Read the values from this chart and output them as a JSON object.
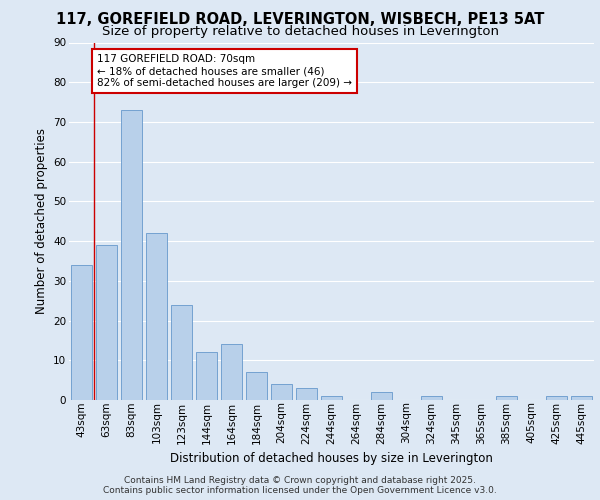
{
  "title_line1": "117, GOREFIELD ROAD, LEVERINGTON, WISBECH, PE13 5AT",
  "title_line2": "Size of property relative to detached houses in Leverington",
  "xlabel": "Distribution of detached houses by size in Leverington",
  "ylabel": "Number of detached properties",
  "categories": [
    "43sqm",
    "63sqm",
    "83sqm",
    "103sqm",
    "123sqm",
    "144sqm",
    "164sqm",
    "184sqm",
    "204sqm",
    "224sqm",
    "244sqm",
    "264sqm",
    "284sqm",
    "304sqm",
    "324sqm",
    "345sqm",
    "365sqm",
    "385sqm",
    "405sqm",
    "425sqm",
    "445sqm"
  ],
  "values": [
    34,
    39,
    73,
    42,
    24,
    12,
    14,
    7,
    4,
    3,
    1,
    0,
    2,
    0,
    1,
    0,
    0,
    1,
    0,
    1,
    1
  ],
  "bar_color": "#b8d0ea",
  "bar_edge_color": "#6699cc",
  "annotation_text": "117 GOREFIELD ROAD: 70sqm\n← 18% of detached houses are smaller (46)\n82% of semi-detached houses are larger (209) →",
  "annotation_box_color": "#ffffff",
  "annotation_box_edge_color": "#cc0000",
  "ylim": [
    0,
    90
  ],
  "yticks": [
    0,
    10,
    20,
    30,
    40,
    50,
    60,
    70,
    80,
    90
  ],
  "bg_color": "#dde8f4",
  "plot_bg_color": "#dde8f4",
  "footer_line1": "Contains HM Land Registry data © Crown copyright and database right 2025.",
  "footer_line2": "Contains public sector information licensed under the Open Government Licence v3.0.",
  "title_fontsize": 10.5,
  "subtitle_fontsize": 9.5,
  "axis_label_fontsize": 8.5,
  "tick_fontsize": 7.5,
  "footer_fontsize": 6.5,
  "annotation_fontsize": 7.5,
  "grid_color": "#ffffff",
  "vline_color": "#cc0000",
  "vline_x": 0.5
}
